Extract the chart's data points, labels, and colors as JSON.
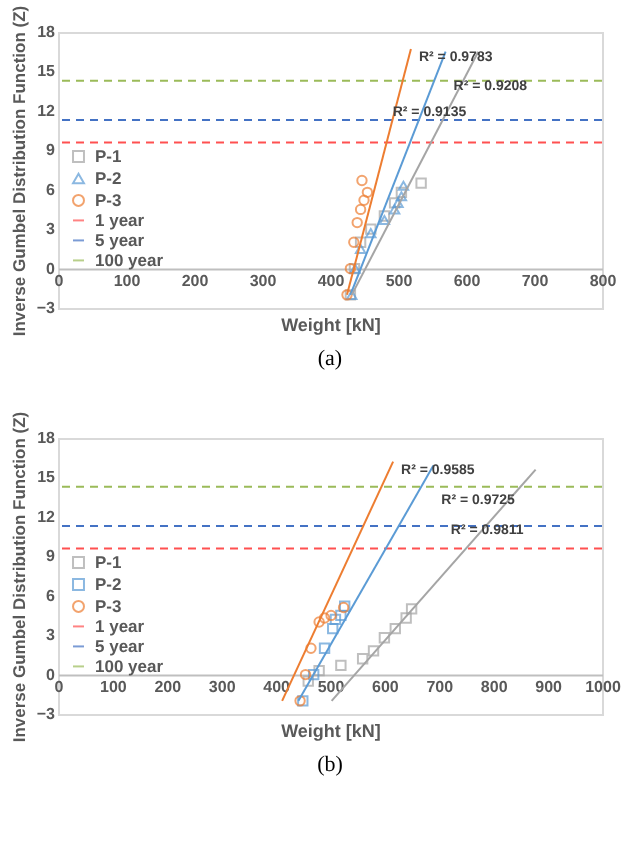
{
  "chart_data": [
    {
      "type": "scatter",
      "xlabel": "Weight [kN]",
      "ylabel": "Inverse Gumbel Distribution Function (Z)",
      "xlim": [
        0,
        800
      ],
      "ylim": [
        -3,
        18
      ],
      "xticks": [
        0,
        100,
        200,
        300,
        400,
        500,
        600,
        700,
        800
      ],
      "yticks": [
        -3,
        0,
        3,
        6,
        9,
        12,
        15,
        18
      ],
      "grid": false,
      "legend": "left",
      "series": [
        {
          "name": "P-1",
          "color": "#a5a5a5",
          "marker": "square",
          "x": [
            430,
            436,
            445,
            460,
            480,
            495,
            505,
            534
          ],
          "values": [
            -2,
            0,
            2,
            3,
            4,
            5,
            5.8,
            6.5
          ]
        },
        {
          "name": "P-2",
          "color": "#5b9bd5",
          "marker": "triangle",
          "x": [
            432,
            437,
            445,
            460,
            480,
            495,
            500,
            505,
            508
          ],
          "values": [
            -2,
            0,
            1.5,
            2.7,
            3.7,
            4.5,
            5,
            5.5,
            6.3
          ]
        },
        {
          "name": "P-3",
          "color": "#ed7d31",
          "marker": "circle",
          "x": [
            425,
            430,
            435,
            440,
            445,
            450,
            455,
            447
          ],
          "values": [
            -2,
            0,
            2,
            3.5,
            4.5,
            5.2,
            5.8,
            6.7
          ]
        },
        {
          "type": "line",
          "color": "#ed7d31",
          "x": [
            425,
            519
          ],
          "values": [
            -2,
            16.7
          ]
        },
        {
          "type": "line",
          "color": "#5b9bd5",
          "x": [
            430,
            570
          ],
          "values": [
            -2,
            16.5
          ]
        },
        {
          "type": "line",
          "color": "#a5a5a5",
          "x": [
            432,
            618
          ],
          "values": [
            -2,
            16.5
          ]
        }
      ],
      "ref_lines": [
        {
          "axis": "y",
          "value": 9.6,
          "label": "1 year",
          "color": "#ff5050"
        },
        {
          "axis": "y",
          "value": 11.3,
          "label": "5 year",
          "color": "#4472c4"
        },
        {
          "axis": "y",
          "value": 14.3,
          "label": "100 year",
          "color": "#9bbb59"
        }
      ],
      "annotations": [
        "R² = 0.9783",
        "R² = 0.9208",
        "R² = 0.9135",
        "(a)"
      ]
    },
    {
      "type": "scatter",
      "xlabel": "Weight [kN]",
      "ylabel": "Inverse Gumbel Distribution Function (Z)",
      "xlim": [
        0,
        1000
      ],
      "ylim": [
        -3,
        18
      ],
      "xticks": [
        0,
        100,
        200,
        300,
        400,
        500,
        600,
        700,
        800,
        900,
        1000
      ],
      "yticks": [
        -3,
        0,
        3,
        6,
        9,
        12,
        15,
        18
      ],
      "grid": false,
      "legend": "left",
      "series": [
        {
          "name": "P-1",
          "color": "#a5a5a5",
          "marker": "square",
          "x": [
            460,
            480,
            520,
            560,
            580,
            600,
            620,
            640,
            650
          ],
          "values": [
            -0.5,
            0.3,
            0.7,
            1.2,
            1.8,
            2.8,
            3.5,
            4.3,
            5
          ]
        },
        {
          "name": "P-2",
          "color": "#5b9bd5",
          "marker": "square",
          "x": [
            450,
            470,
            490,
            505,
            510,
            520,
            527
          ],
          "values": [
            -2,
            0,
            2,
            3.5,
            4.2,
            4.5,
            5.2
          ]
        },
        {
          "name": "P-3",
          "color": "#ed7d31",
          "marker": "circle",
          "x": [
            445,
            455,
            465,
            480,
            490,
            502,
            525
          ],
          "values": [
            -2,
            0,
            2,
            4,
            4.3,
            4.5,
            5.1
          ]
        },
        {
          "type": "line",
          "color": "#ed7d31",
          "x": [
            412,
            616
          ],
          "values": [
            -2,
            16.2
          ]
        },
        {
          "type": "line",
          "color": "#5b9bd5",
          "x": [
            442,
            690
          ],
          "values": [
            -2,
            15.9
          ]
        },
        {
          "type": "line",
          "color": "#a5a5a5",
          "x": [
            503,
            878
          ],
          "values": [
            -2,
            15.6
          ]
        }
      ],
      "ref_lines": [
        {
          "axis": "y",
          "value": 9.6,
          "label": "1 year",
          "color": "#ff5050"
        },
        {
          "axis": "y",
          "value": 11.3,
          "label": "5 year",
          "color": "#4472c4"
        },
        {
          "axis": "y",
          "value": 14.3,
          "label": "100 year",
          "color": "#9bbb59"
        }
      ],
      "annotations": [
        "R² = 0.9585",
        "R² = 0.9725",
        "R² = 0.9811",
        "(b)"
      ]
    }
  ]
}
